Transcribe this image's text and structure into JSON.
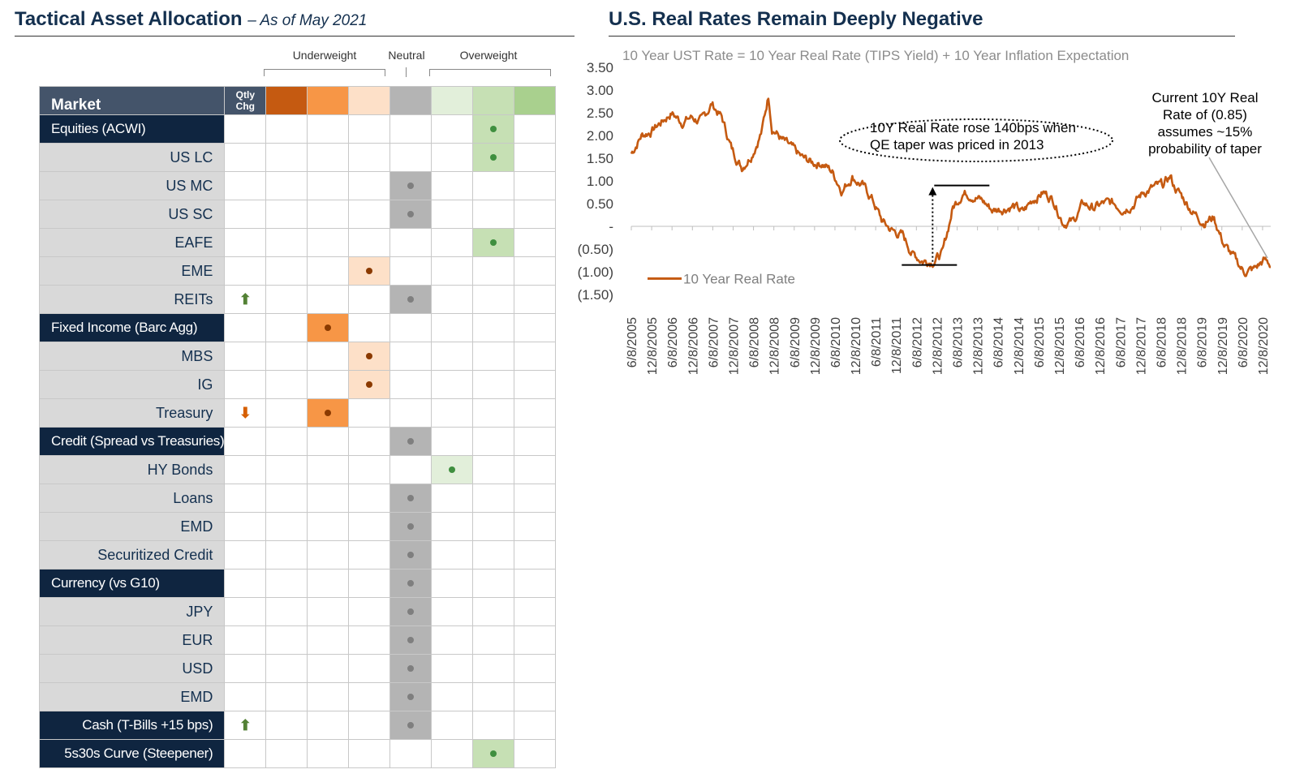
{
  "left": {
    "title": "Tactical Asset Allocation",
    "subtitle": "– As of May 2021",
    "group_labels": {
      "underweight": "Underweight",
      "neutral": "Neutral",
      "overweight": "Overweight"
    },
    "header": {
      "market": "Market",
      "qtly_chg_1": "Qtly",
      "qtly_chg_2": "Chg"
    },
    "scale_colors": [
      "#c55a11",
      "#f79646",
      "#fde0c8",
      "#b4b4b4",
      "#e2efda",
      "#c6e0b4",
      "#a9d08e"
    ],
    "colors": {
      "header_bg": "#44546a",
      "category_bg": "#0f2540",
      "sub_bg": "#d9d9d9",
      "dot_under": "#8b3a00",
      "dot_neutral": "#7f7f7f",
      "dot_over": "#3f8f3f",
      "arrow_up": "#538135",
      "arrow_down": "#d65f00"
    },
    "rows": [
      {
        "label": "Equities  (ACWI)",
        "type": "category",
        "pos": 5,
        "chg": ""
      },
      {
        "label": "US LC",
        "type": "sub",
        "pos": 5,
        "chg": ""
      },
      {
        "label": "US MC",
        "type": "sub",
        "pos": 3,
        "chg": ""
      },
      {
        "label": "US SC",
        "type": "sub",
        "pos": 3,
        "chg": ""
      },
      {
        "label": "EAFE",
        "type": "sub",
        "pos": 5,
        "chg": ""
      },
      {
        "label": "EME",
        "type": "sub",
        "pos": 2,
        "chg": ""
      },
      {
        "label": "REITs",
        "type": "sub",
        "pos": 3,
        "chg": "up"
      },
      {
        "label": "Fixed Income (Barc Agg)",
        "type": "category",
        "pos": 1,
        "chg": ""
      },
      {
        "label": "MBS",
        "type": "sub",
        "pos": 2,
        "chg": ""
      },
      {
        "label": "IG",
        "type": "sub",
        "pos": 2,
        "chg": ""
      },
      {
        "label": "Treasury",
        "type": "sub",
        "pos": 1,
        "chg": "down"
      },
      {
        "label": "Credit (Spread vs Treasuries)",
        "type": "category",
        "pos": 3,
        "chg": ""
      },
      {
        "label": "HY Bonds",
        "type": "sub",
        "pos": 4,
        "chg": ""
      },
      {
        "label": "Loans",
        "type": "sub",
        "pos": 3,
        "chg": ""
      },
      {
        "label": "EMD",
        "type": "sub",
        "pos": 3,
        "chg": ""
      },
      {
        "label": "Securitized Credit",
        "type": "sub",
        "pos": 3,
        "chg": ""
      },
      {
        "label": "Currency (vs G10)",
        "type": "category",
        "pos": 3,
        "chg": ""
      },
      {
        "label": "JPY",
        "type": "sub",
        "pos": 3,
        "chg": ""
      },
      {
        "label": "EUR",
        "type": "sub",
        "pos": 3,
        "chg": ""
      },
      {
        "label": "USD",
        "type": "sub",
        "pos": 3,
        "chg": ""
      },
      {
        "label": "EMD",
        "type": "sub",
        "pos": 3,
        "chg": ""
      },
      {
        "label": "Cash (T-Bills +15 bps)",
        "type": "category-right",
        "pos": 3,
        "chg": "up"
      },
      {
        "label": "5s30s Curve (Steepener)",
        "type": "category-right",
        "pos": 5,
        "chg": ""
      }
    ]
  },
  "right": {
    "title": "U.S. Real Rates Remain Deeply Negative",
    "subtitle": "10 Year UST Rate = 10 Year Real Rate (TIPS Yield) + 10 Year Inflation Expectation",
    "annotation_taper": [
      "10Y Real Rate rose 140bps when",
      "QE taper was priced in 2013"
    ],
    "annotation_current": [
      "Current 10Y Real",
      "Rate of (0.85)",
      "assumes ~15%",
      "probability of taper"
    ]
  },
  "chart_data": {
    "type": "line",
    "title": "U.S. Real Rates Remain Deeply Negative",
    "subtitle": "10 Year UST Rate = 10 Year Real Rate (TIPS Yield) + 10 Year Inflation Expectation",
    "ylim": [
      -1.5,
      3.5
    ],
    "y_ticks": [
      3.5,
      3.0,
      2.5,
      2.0,
      1.5,
      1.0,
      0.5,
      0,
      -0.5,
      -1.0,
      -1.5
    ],
    "y_tick_labels": [
      "3.50",
      "3.00",
      "2.50",
      "2.00",
      "1.50",
      "1.00",
      "0.50",
      "-",
      "(0.50)",
      "(1.00)",
      "(1.50)"
    ],
    "x_tick_labels": [
      "6/8/2005",
      "12/8/2005",
      "6/8/2006",
      "12/8/2006",
      "6/8/2007",
      "12/8/2007",
      "6/8/2008",
      "12/8/2008",
      "6/8/2009",
      "12/8/2009",
      "6/8/2010",
      "12/8/2010",
      "6/8/2011",
      "12/8/2011",
      "6/8/2012",
      "12/8/2012",
      "6/8/2013",
      "12/8/2013",
      "6/8/2014",
      "12/8/2014",
      "6/8/2015",
      "12/8/2015",
      "6/8/2016",
      "12/8/2016",
      "6/8/2017",
      "12/8/2017",
      "6/8/2018",
      "12/8/2018",
      "6/8/2019",
      "12/8/2019",
      "6/8/2020",
      "12/8/2020"
    ],
    "legend": "bottom-left",
    "grid": false,
    "series": [
      {
        "name": "10 Year Real Rate",
        "color": "#c55a11",
        "x": [
          "2005-06",
          "2005-09",
          "2005-12",
          "2006-03",
          "2006-06",
          "2006-09",
          "2006-12",
          "2007-03",
          "2007-06",
          "2007-09",
          "2007-12",
          "2008-03",
          "2008-06",
          "2008-09",
          "2008-11",
          "2008-12",
          "2009-03",
          "2009-06",
          "2009-09",
          "2009-12",
          "2010-03",
          "2010-06",
          "2010-09",
          "2010-12",
          "2011-03",
          "2011-06",
          "2011-09",
          "2011-12",
          "2012-03",
          "2012-06",
          "2012-09",
          "2012-12",
          "2013-03",
          "2013-06",
          "2013-09",
          "2013-12",
          "2014-03",
          "2014-06",
          "2014-09",
          "2014-12",
          "2015-03",
          "2015-06",
          "2015-09",
          "2015-12",
          "2016-03",
          "2016-06",
          "2016-09",
          "2016-12",
          "2017-03",
          "2017-06",
          "2017-09",
          "2017-12",
          "2018-03",
          "2018-06",
          "2018-09",
          "2018-11",
          "2018-12",
          "2019-03",
          "2019-06",
          "2019-09",
          "2019-12",
          "2020-03",
          "2020-06",
          "2020-09",
          "2020-12",
          "2021-03",
          "2021-05"
        ],
        "values": [
          1.6,
          2.0,
          2.1,
          2.3,
          2.5,
          2.3,
          2.4,
          2.3,
          2.7,
          2.4,
          1.7,
          1.3,
          1.6,
          2.1,
          2.9,
          2.2,
          1.9,
          1.7,
          1.5,
          1.4,
          1.4,
          1.2,
          0.8,
          1.1,
          0.9,
          0.6,
          0.1,
          -0.1,
          -0.2,
          -0.6,
          -0.75,
          -0.75,
          -0.6,
          0.4,
          0.75,
          0.7,
          0.55,
          0.35,
          0.4,
          0.45,
          0.3,
          0.6,
          0.75,
          0.6,
          0.1,
          0.1,
          0.5,
          0.4,
          0.5,
          0.5,
          0.4,
          0.5,
          0.75,
          0.85,
          0.9,
          1.1,
          0.9,
          0.6,
          0.3,
          0.1,
          0.2,
          -0.4,
          -0.7,
          -1.0,
          -0.95,
          -0.75,
          -0.85
        ]
      }
    ]
  }
}
